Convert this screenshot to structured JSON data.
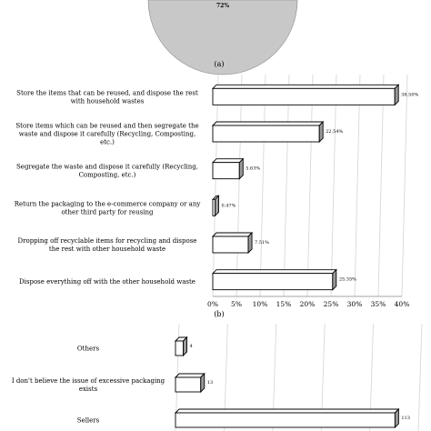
{
  "pie_fragment": {
    "label": "72%",
    "color": "#c8c8c8"
  },
  "captions": {
    "a": "(a)",
    "b": "(b)"
  },
  "chart_data": [
    {
      "type": "bar",
      "orientation": "horizontal",
      "style": "3d",
      "categories": [
        "Store the items that can be reused, and dispose the rest with household wastes",
        "Store items which can be reused and then segregate the waste and dispose it carefully (Recycling, Composting, etc.)",
        "Segregate the waste and dispose it carefully (Recycling, Composting, etc.)",
        "Return the packaging to the e-commerce company or any other third party for reusing",
        "Dropping off recyclable items for recycling and dispose the rest with other household waste",
        "Dispose everything off with the other household waste"
      ],
      "values": [
        38.5,
        22.54,
        5.63,
        0.47,
        7.51,
        25.35
      ],
      "value_labels": [
        "38.50%",
        "22.54%",
        "5.63%",
        "0.47%",
        "7.51%",
        "25.35%"
      ],
      "xlim": [
        0,
        40
      ],
      "xticks": [
        "0%",
        "5%",
        "10%",
        "15%",
        "20%",
        "25%",
        "30%",
        "35%",
        "40%"
      ],
      "grid": true
    },
    {
      "type": "bar",
      "orientation": "horizontal",
      "style": "3d",
      "categories": [
        "Others",
        "I don't believe the issue of excessive packaging exists",
        "Sellers"
      ],
      "values": [
        4,
        13,
        113
      ],
      "value_labels": [
        "4",
        "13",
        "113"
      ],
      "grid": true
    }
  ]
}
